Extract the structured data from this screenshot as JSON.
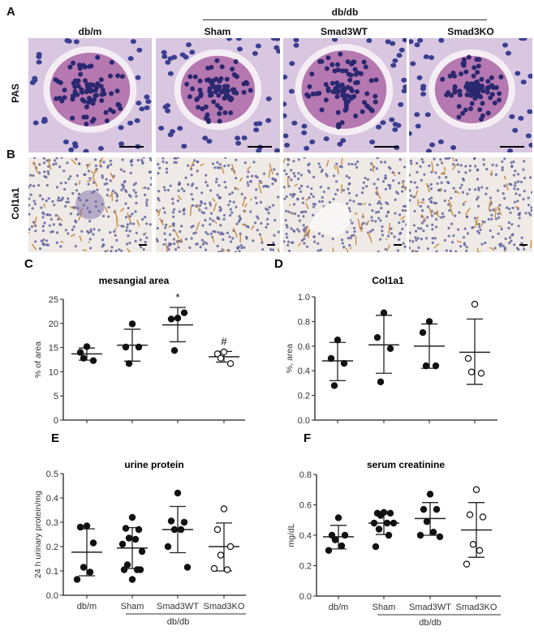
{
  "figure": {
    "panel_labels": [
      "A",
      "B",
      "C",
      "D",
      "E",
      "F"
    ],
    "group_header": "db/db",
    "column_headers": [
      "db/m",
      "Sham",
      "Smad3WT",
      "Smad3KO"
    ],
    "row_labels": [
      "PAS",
      "Col1a1"
    ],
    "colors": {
      "pas_bg": "#d9c6e0",
      "pas_nuclei": "#3b3f8f",
      "glomerulus": "#a0509a",
      "col_bg": "#efeae6",
      "col_stain": "#c9904a",
      "col_nuclei": "#5a5c9a"
    }
  },
  "chart_data": [
    {
      "type": "scatter",
      "panel": "C",
      "title": "mesangial area",
      "ylabel": "% of area",
      "xlabel": "",
      "ylim": [
        0,
        25
      ],
      "yticks": [
        "0",
        "5",
        "10",
        "15",
        "20",
        "25"
      ],
      "categories": [
        "db/m",
        "Sham",
        "Smad3WT",
        "Smad3KO"
      ],
      "show_xticklabels": false,
      "series": [
        {
          "points": [
            15.2,
            14.0,
            12.3,
            12.8
          ],
          "mean": 13.7,
          "sd_low": 12.4,
          "sd_high": 14.9,
          "marker": "filled"
        },
        {
          "points": [
            19.9,
            15.1,
            15.1,
            11.7
          ],
          "mean": 15.5,
          "sd_low": 12.2,
          "sd_high": 18.8,
          "marker": "filled"
        },
        {
          "points": [
            21.1,
            20.9,
            22.2,
            14.4
          ],
          "mean": 19.7,
          "sd_low": 16.2,
          "sd_high": 23.3,
          "marker": "filled",
          "annotation": "*"
        },
        {
          "points": [
            14.1,
            13.7,
            11.7,
            12.8
          ],
          "mean": 13.1,
          "sd_low": 12.0,
          "sd_high": 14.2,
          "marker": "open",
          "annotation": "#"
        }
      ]
    },
    {
      "type": "scatter",
      "panel": "D",
      "title": "Col1a1",
      "ylabel": "%, area",
      "xlabel": "",
      "ylim": [
        0,
        1.0
      ],
      "yticks": [
        "0.0",
        "0.2",
        "0.4",
        "0.6",
        "0.8",
        "1.0"
      ],
      "categories": [
        "db/m",
        "Sham",
        "Smad3WT",
        "Smad3KO"
      ],
      "show_xticklabels": false,
      "series": [
        {
          "points": [
            0.65,
            0.5,
            0.46,
            0.28
          ],
          "mean": 0.48,
          "sd_low": 0.32,
          "sd_high": 0.63,
          "marker": "filled"
        },
        {
          "points": [
            0.87,
            0.67,
            0.58,
            0.31
          ],
          "mean": 0.61,
          "sd_low": 0.38,
          "sd_high": 0.85,
          "marker": "filled"
        },
        {
          "points": [
            0.8,
            0.71,
            0.44,
            0.44
          ],
          "mean": 0.6,
          "sd_low": 0.42,
          "sd_high": 0.78,
          "marker": "filled"
        },
        {
          "points": [
            0.94,
            0.5,
            0.38,
            0.39
          ],
          "mean": 0.55,
          "sd_low": 0.29,
          "sd_high": 0.82,
          "marker": "open"
        }
      ]
    },
    {
      "type": "scatter",
      "panel": "E",
      "title": "urine protein",
      "ylabel": "24 h urinary protein/mg",
      "xlabel": "db/db",
      "ylim": [
        0,
        0.5
      ],
      "yticks": [
        "0.0",
        "0.1",
        "0.2",
        "0.3",
        "0.4",
        "0.5"
      ],
      "categories": [
        "db/m",
        "Sham",
        "Smad3WT",
        "Smad3KO"
      ],
      "show_xticklabels": true,
      "series": [
        {
          "points": [
            0.285,
            0.28,
            0.215,
            0.115,
            0.095,
            0.065
          ],
          "mean": 0.177,
          "sd_low": 0.08,
          "sd_high": 0.273,
          "marker": "filled"
        },
        {
          "points": [
            0.32,
            0.275,
            0.27,
            0.235,
            0.23,
            0.21,
            0.18,
            0.125,
            0.105,
            0.105,
            0.105,
            0.065
          ],
          "mean": 0.194,
          "sd_low": 0.11,
          "sd_high": 0.278,
          "marker": "filled"
        },
        {
          "points": [
            0.42,
            0.305,
            0.3,
            0.27,
            0.27,
            0.2,
            0.115
          ],
          "mean": 0.27,
          "sd_low": 0.175,
          "sd_high": 0.365,
          "marker": "filled"
        },
        {
          "points": [
            0.355,
            0.27,
            0.2,
            0.165,
            0.105,
            0.11
          ],
          "mean": 0.2,
          "sd_low": 0.1,
          "sd_high": 0.297,
          "marker": "open"
        }
      ]
    },
    {
      "type": "scatter",
      "panel": "F",
      "title": "serum creatinine",
      "ylabel": "mg/dL",
      "xlabel": "db/db",
      "ylim": [
        0,
        0.8
      ],
      "yticks": [
        "0.0",
        "0.2",
        "0.4",
        "0.6",
        "0.8"
      ],
      "categories": [
        "db/m",
        "Sham",
        "Smad3WT",
        "Smad3KO"
      ],
      "show_xticklabels": true,
      "series": [
        {
          "points": [
            0.515,
            0.4,
            0.4,
            0.37,
            0.33,
            0.3
          ],
          "mean": 0.39,
          "sd_low": 0.31,
          "sd_high": 0.465,
          "marker": "filled"
        },
        {
          "points": [
            0.55,
            0.545,
            0.545,
            0.53,
            0.48,
            0.48,
            0.48,
            0.44,
            0.4,
            0.325
          ],
          "mean": 0.48,
          "sd_low": 0.405,
          "sd_high": 0.555,
          "marker": "filled"
        },
        {
          "points": [
            0.67,
            0.57,
            0.57,
            0.49,
            0.42,
            0.4,
            0.39
          ],
          "mean": 0.51,
          "sd_low": 0.4,
          "sd_high": 0.615,
          "marker": "filled"
        },
        {
          "points": [
            0.7,
            0.535,
            0.52,
            0.34,
            0.3,
            0.21
          ],
          "mean": 0.435,
          "sd_low": 0.255,
          "sd_high": 0.615,
          "marker": "open"
        }
      ]
    }
  ]
}
